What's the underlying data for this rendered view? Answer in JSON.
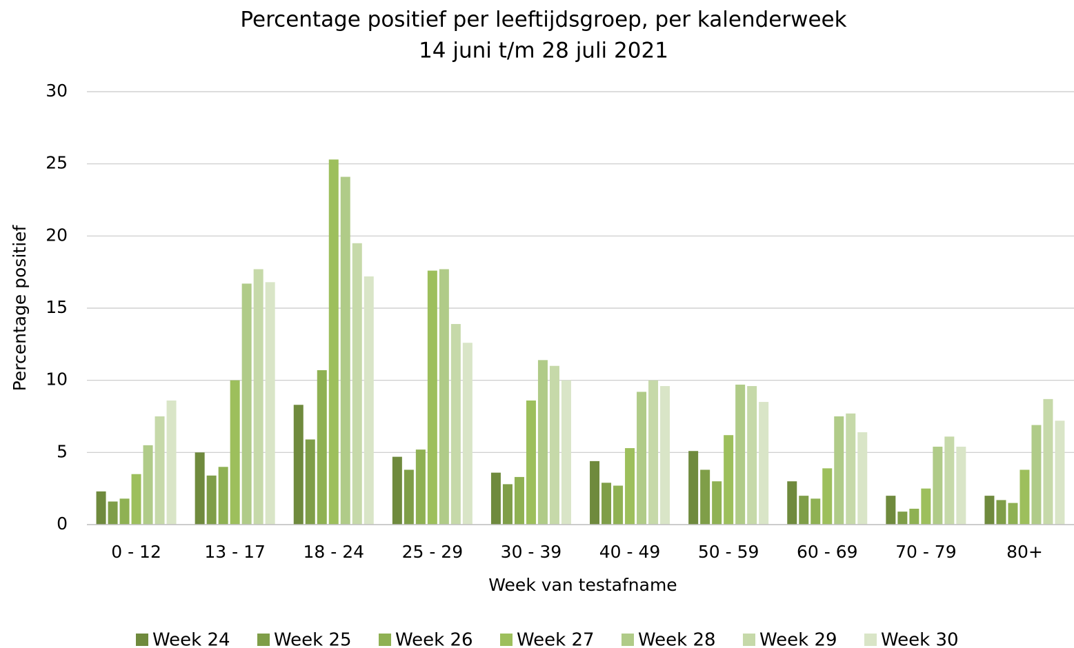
{
  "chart_data": {
    "type": "bar",
    "title": "Percentage positief per leeftijdsgroep, per kalenderweek",
    "subtitle": "14 juni t/m 28 juli 2021",
    "x_label": "Week van testafname",
    "y_label": "Percentage positief",
    "categories": [
      "0 - 12",
      "13 - 17",
      "18 - 24",
      "25 - 29",
      "30 - 39",
      "40 - 49",
      "50 - 59",
      "60 - 69",
      "70 - 79",
      "80+"
    ],
    "series": [
      {
        "name": "Week 24",
        "color": "#6f8a3d",
        "values": [
          2.3,
          5.0,
          8.3,
          4.7,
          3.6,
          4.4,
          5.1,
          3.0,
          2.0,
          2.0
        ]
      },
      {
        "name": "Week 25",
        "color": "#7f9e48",
        "values": [
          1.6,
          3.4,
          5.9,
          3.8,
          2.8,
          2.9,
          3.8,
          2.0,
          0.9,
          1.7
        ]
      },
      {
        "name": "Week 26",
        "color": "#8fb153",
        "values": [
          1.8,
          4.0,
          10.7,
          5.2,
          3.3,
          2.7,
          3.0,
          1.8,
          1.1,
          1.5
        ]
      },
      {
        "name": "Week 27",
        "color": "#9dbf5c",
        "values": [
          3.5,
          10.0,
          25.3,
          17.6,
          8.6,
          5.3,
          6.2,
          3.9,
          2.5,
          3.8
        ]
      },
      {
        "name": "Week 28",
        "color": "#b0cb88",
        "values": [
          5.5,
          16.7,
          24.1,
          17.7,
          11.4,
          9.2,
          9.7,
          7.5,
          5.4,
          6.9
        ]
      },
      {
        "name": "Week 29",
        "color": "#c6d9a9",
        "values": [
          7.5,
          17.7,
          19.5,
          13.9,
          11.0,
          10.0,
          9.6,
          7.7,
          6.1,
          8.7
        ]
      },
      {
        "name": "Week 30",
        "color": "#d9e5c7",
        "values": [
          8.6,
          16.8,
          17.2,
          12.6,
          10.0,
          9.6,
          8.5,
          6.4,
          5.4,
          7.2
        ]
      }
    ],
    "ylim": [
      0,
      30
    ],
    "yticks": [
      0,
      5,
      10,
      15,
      20,
      25,
      30
    ],
    "grid": true,
    "legend": "bottom"
  }
}
